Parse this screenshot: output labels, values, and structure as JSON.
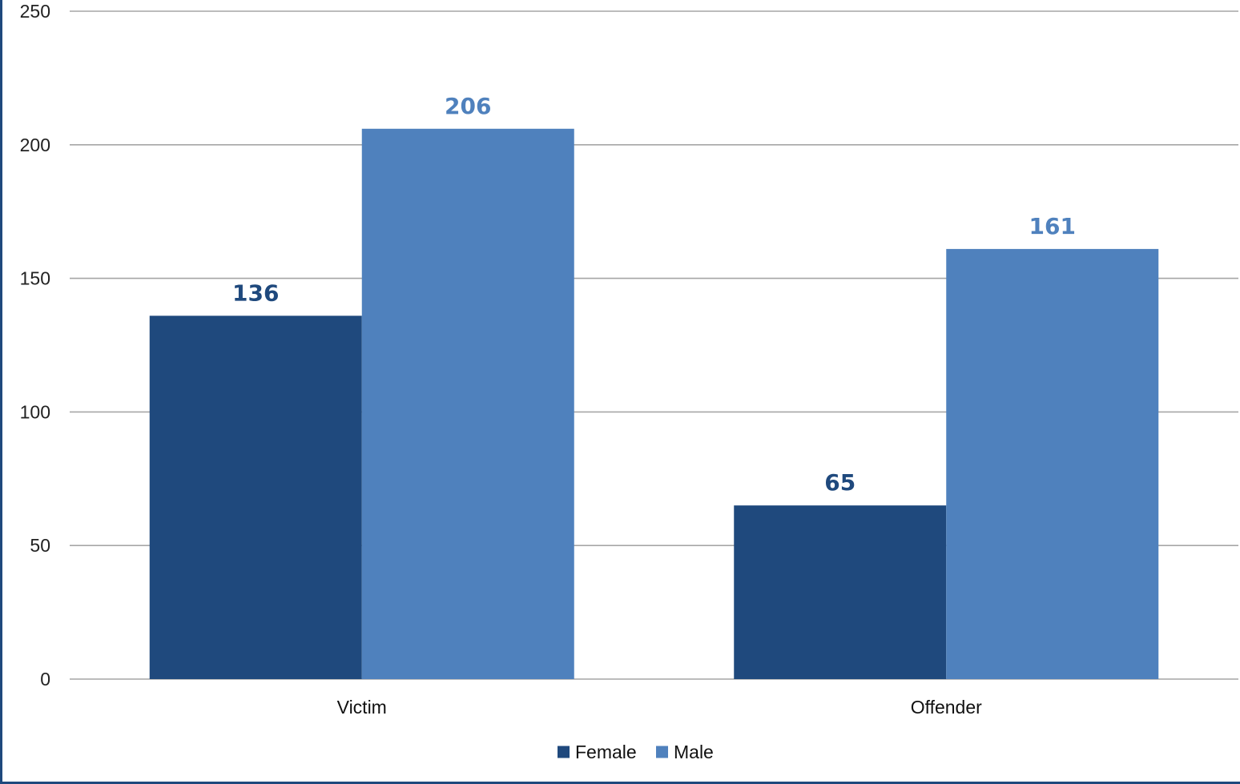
{
  "chart_data": {
    "type": "bar",
    "categories": [
      "Victim",
      "Offender"
    ],
    "series": [
      {
        "name": "Female",
        "values": [
          136,
          65
        ],
        "color": "#1F497D"
      },
      {
        "name": "Male",
        "values": [
          206,
          161
        ],
        "color": "#4F81BD"
      }
    ],
    "title": "",
    "xlabel": "",
    "ylabel": "",
    "ylim": [
      0,
      250
    ],
    "yticks": [
      "0",
      "50",
      "100",
      "150",
      "200",
      "250"
    ],
    "grid": true,
    "gridline_color": "#A6A6A6",
    "legend_position": "bottom",
    "data_labels": true
  }
}
